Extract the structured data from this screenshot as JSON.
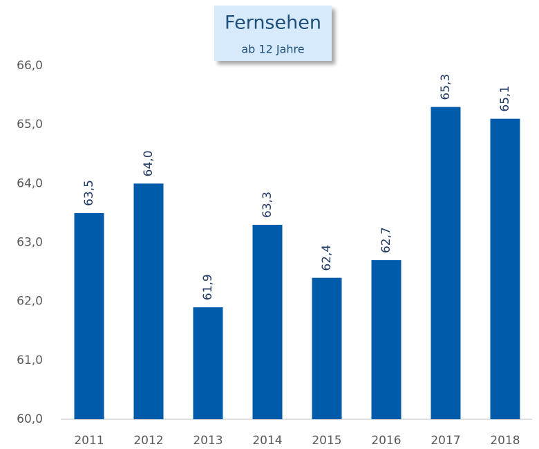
{
  "chart_data": {
    "type": "bar",
    "title": "Fernsehen",
    "subtitle": "ab 12 Jahre",
    "categories": [
      "2011",
      "2012",
      "2013",
      "2014",
      "2015",
      "2016",
      "2017",
      "2018"
    ],
    "values": [
      63.5,
      64.0,
      61.9,
      63.3,
      62.4,
      62.7,
      65.3,
      65.1
    ],
    "value_labels": [
      "63,5",
      "64,0",
      "61,9",
      "63,3",
      "62,4",
      "62,7",
      "65,3",
      "65,1"
    ],
    "color": "#005bab",
    "ylim": [
      60,
      66
    ],
    "yticks": [
      {
        "value": 60,
        "label": "60,0"
      },
      {
        "value": 61,
        "label": "61,0"
      },
      {
        "value": 62,
        "label": "62,0"
      },
      {
        "value": 63,
        "label": "63,0"
      },
      {
        "value": 64,
        "label": "64,0"
      },
      {
        "value": 65,
        "label": "65,0"
      },
      {
        "value": 66,
        "label": "66,0"
      }
    ],
    "grid": false
  }
}
